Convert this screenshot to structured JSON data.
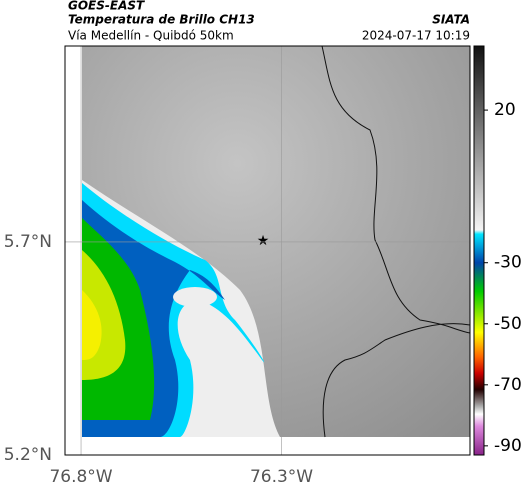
{
  "header": {
    "source": "GOES-EAST",
    "title": "Temperatura de Brillo CH13",
    "subtitle": "Vía Medellín - Quibdó 50km",
    "credit": "SIATA",
    "datetime": "2024-07-17 10:19"
  },
  "map": {
    "xlim": [
      -76.84,
      -75.83
    ],
    "ylim": [
      5.2,
      6.16
    ],
    "xticks": [
      {
        "value": -76.8,
        "label": "76.8°W"
      },
      {
        "value": -76.3,
        "label": "76.3°W"
      }
    ],
    "yticks": [
      {
        "value": 5.7,
        "label": "5.7°N"
      },
      {
        "value": 5.2,
        "label": "5.2°N"
      }
    ]
  },
  "colorbar": {
    "lim": [
      -93,
      41
    ],
    "ticks": [
      20,
      -30,
      -50,
      -70,
      -90
    ]
  }
}
